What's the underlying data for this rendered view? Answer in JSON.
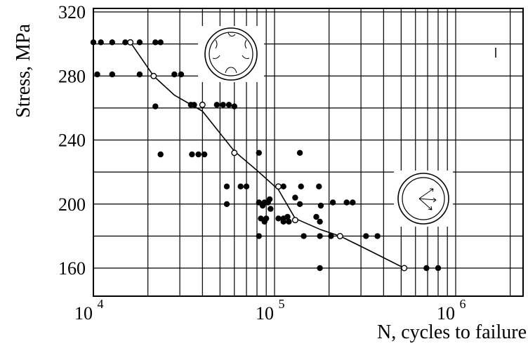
{
  "chart_data": {
    "type": "scatter",
    "title": "",
    "xlabel": "N, cycles to failure",
    "ylabel": "Stress, MPa",
    "x_scale": "log",
    "xlim": [
      10000,
      2000000
    ],
    "ylim": [
      143,
      320
    ],
    "x_ticks": [
      {
        "value": 10000,
        "base": "10",
        "exp": "4"
      },
      {
        "value": 100000,
        "base": "10",
        "exp": "5"
      },
      {
        "value": 1000000,
        "base": "10",
        "exp": "6"
      }
    ],
    "y_ticks": [
      "160",
      "200",
      "240",
      "280",
      "320"
    ],
    "grid": true,
    "series": [
      {
        "marker": "filled-circle",
        "points": [
          [
            10000,
            301
          ],
          [
            11000,
            301
          ],
          [
            12700,
            301
          ],
          [
            15000,
            301
          ],
          [
            18000,
            301
          ],
          [
            22000,
            301
          ],
          [
            23500,
            301
          ],
          [
            10500,
            281
          ],
          [
            12700,
            281
          ],
          [
            18000,
            281
          ],
          [
            28000,
            281
          ],
          [
            30500,
            281
          ],
          [
            22000,
            261
          ],
          [
            34500,
            262
          ],
          [
            36000,
            262
          ],
          [
            48000,
            262
          ],
          [
            52000,
            262
          ],
          [
            56000,
            262
          ],
          [
            60000,
            261
          ],
          [
            23500,
            231
          ],
          [
            35000,
            231
          ],
          [
            38000,
            231
          ],
          [
            41000,
            231
          ],
          [
            82000,
            232
          ],
          [
            138000,
            232
          ],
          [
            54500,
            211
          ],
          [
            65000,
            211
          ],
          [
            70000,
            211
          ],
          [
            112000,
            211
          ],
          [
            140000,
            211
          ],
          [
            176000,
            211
          ],
          [
            54500,
            200
          ],
          [
            82000,
            201
          ],
          [
            88000,
            201
          ],
          [
            92000,
            201
          ],
          [
            86000,
            199
          ],
          [
            94000,
            203
          ],
          [
            130000,
            204
          ],
          [
            95000,
            197
          ],
          [
            138000,
            200
          ],
          [
            180000,
            199
          ],
          [
            210000,
            201
          ],
          [
            250000,
            201
          ],
          [
            270000,
            201
          ],
          [
            84000,
            191
          ],
          [
            90000,
            191
          ],
          [
            105000,
            191
          ],
          [
            112000,
            191
          ],
          [
            118000,
            192
          ],
          [
            88000,
            189
          ],
          [
            112000,
            189
          ],
          [
            120000,
            189
          ],
          [
            170000,
            192
          ],
          [
            178000,
            189
          ],
          [
            82000,
            180
          ],
          [
            145000,
            180
          ],
          [
            178000,
            180
          ],
          [
            205000,
            180
          ],
          [
            320000,
            180
          ],
          [
            370000,
            180
          ],
          [
            178000,
            160
          ],
          [
            690000,
            160
          ],
          [
            800000,
            160
          ]
        ]
      },
      {
        "marker": "open-circle",
        "points": [
          [
            16000,
            301
          ],
          [
            21500,
            280
          ],
          [
            40000,
            262
          ],
          [
            60000,
            232
          ],
          [
            105000,
            211
          ],
          [
            130000,
            190
          ],
          [
            230000,
            180
          ],
          [
            520000,
            160
          ]
        ]
      }
    ],
    "fit_curve": [
      [
        16000,
        301
      ],
      [
        21500,
        280
      ],
      [
        28000,
        268
      ],
      [
        40000,
        258
      ],
      [
        60000,
        233
      ],
      [
        80000,
        221
      ],
      [
        105000,
        209
      ],
      [
        130000,
        191
      ],
      [
        180000,
        184
      ],
      [
        230000,
        180
      ],
      [
        320000,
        172
      ],
      [
        520000,
        160
      ]
    ],
    "inset_icons": [
      "tube-cross-section-internal-defects-icon",
      "tube-cross-section-radial-arrows-icon"
    ]
  }
}
